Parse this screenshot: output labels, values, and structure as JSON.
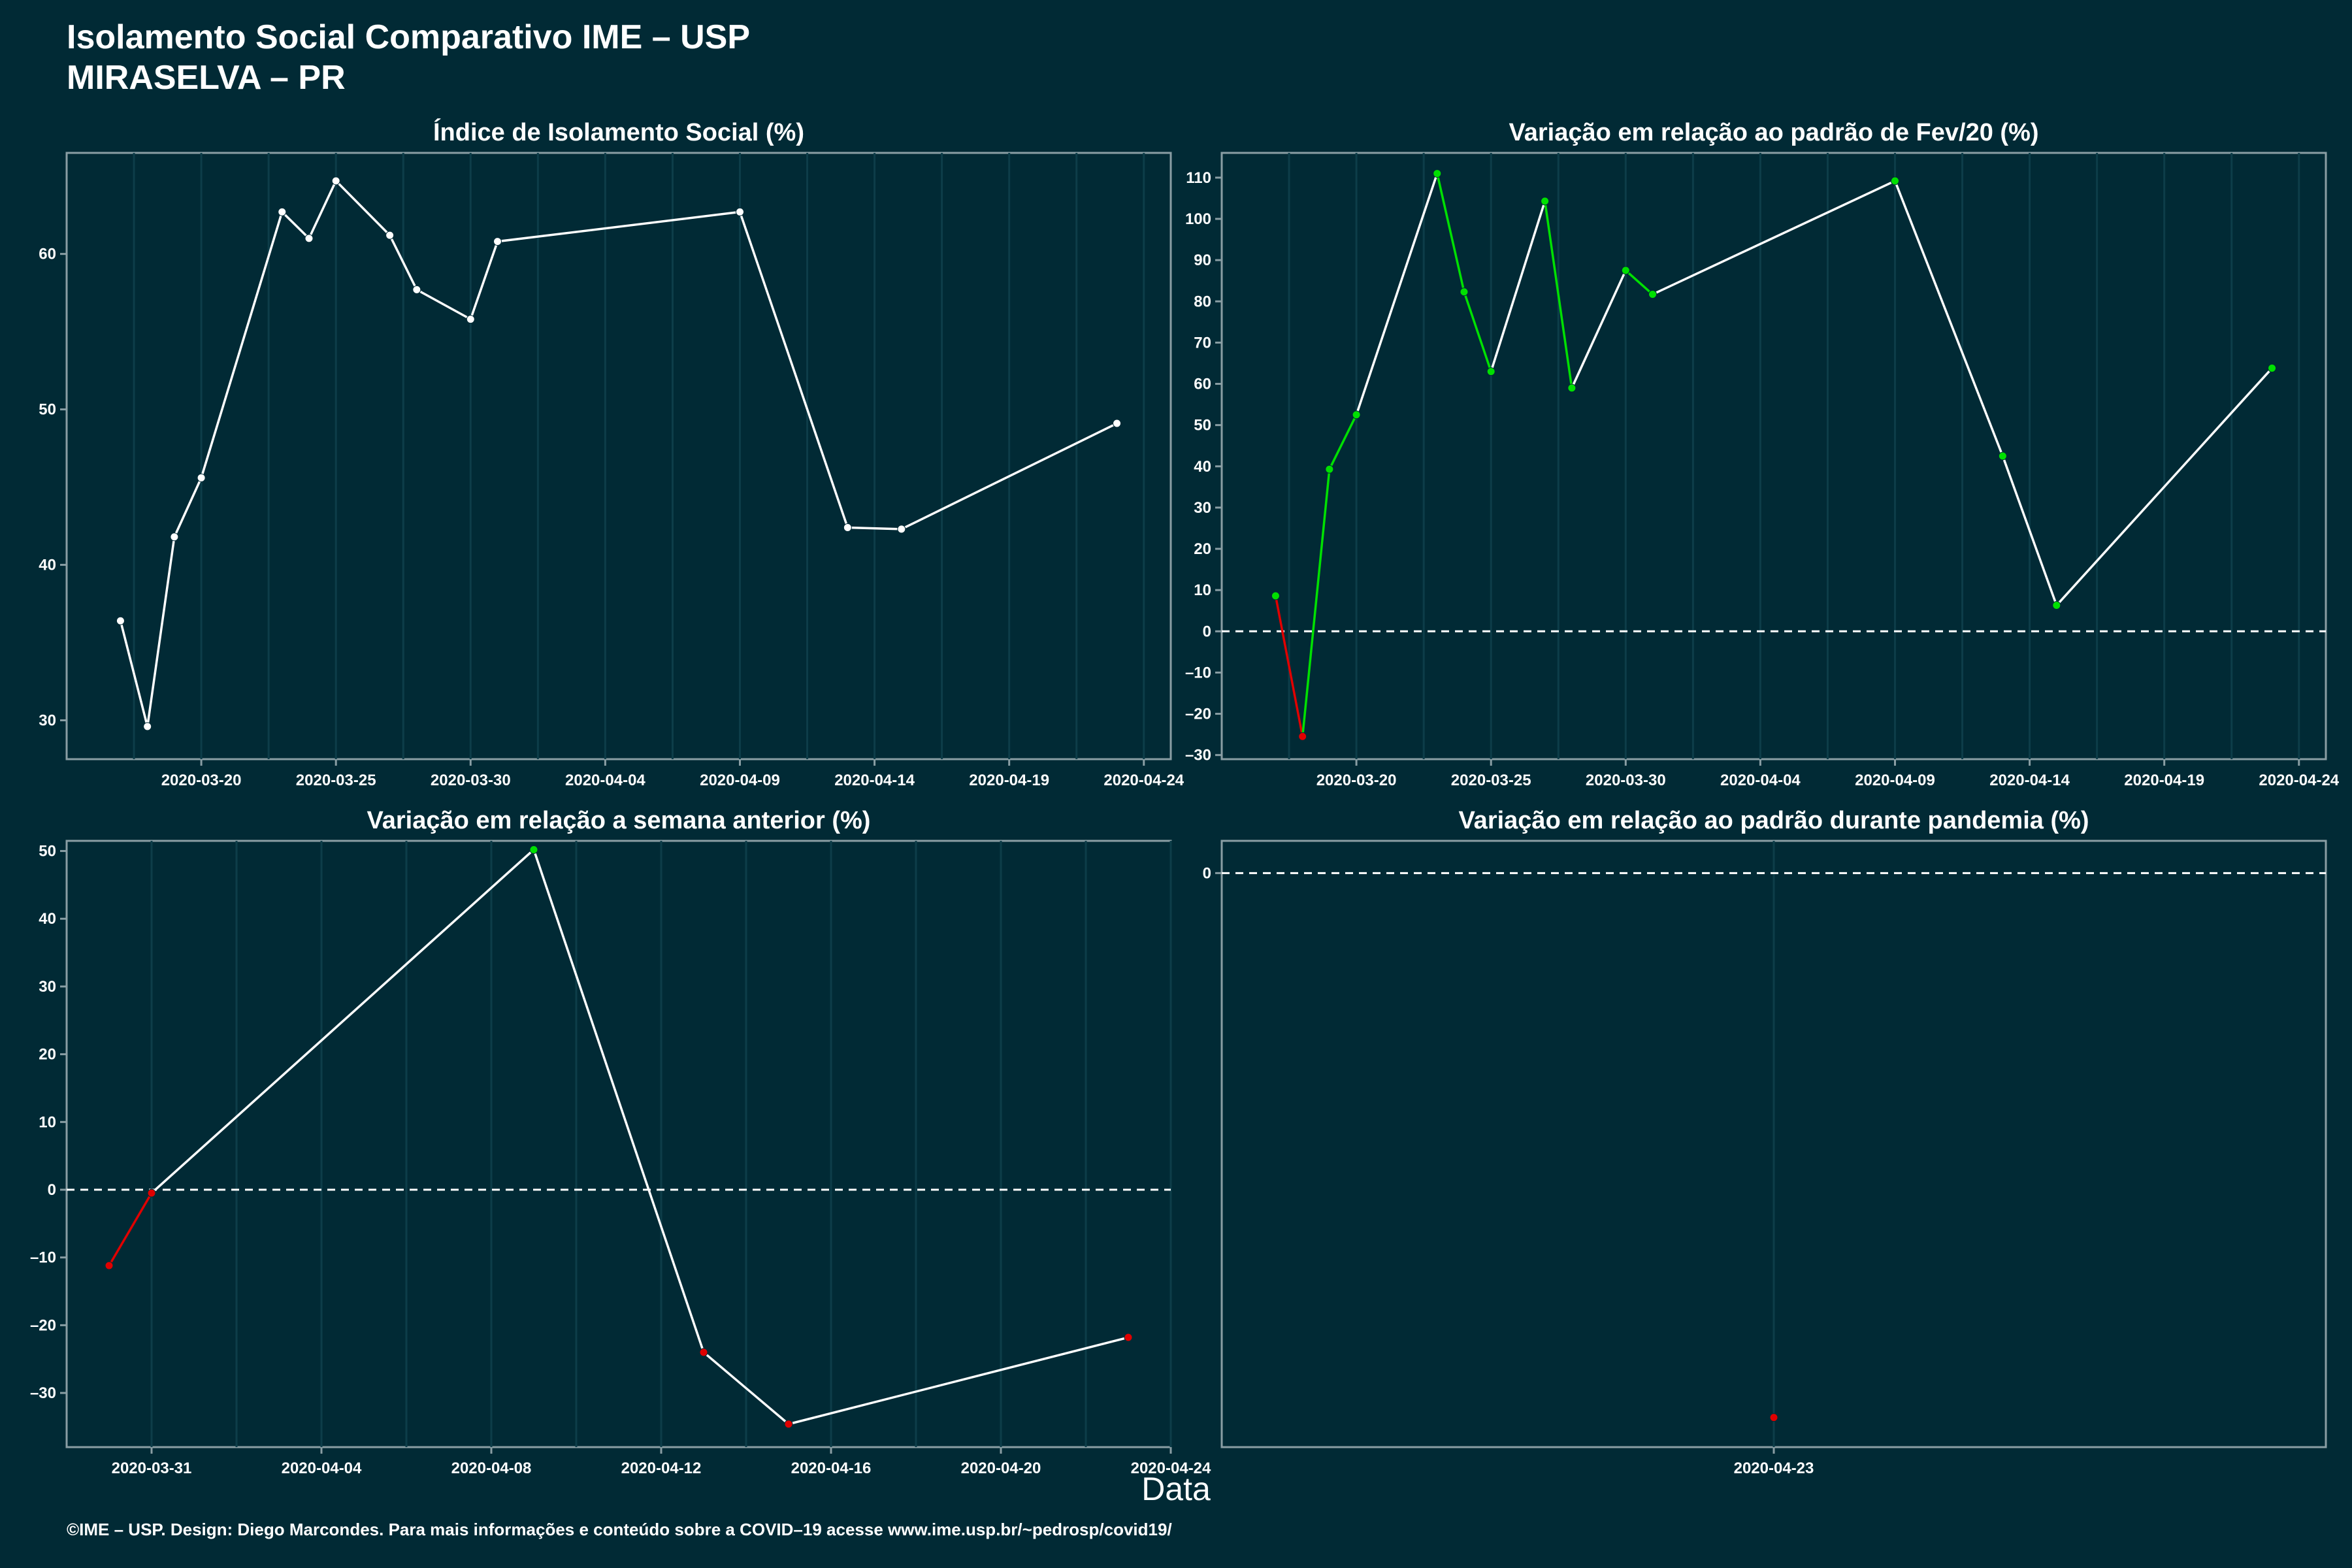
{
  "header": {
    "line1": "Isolamento Social Comparativo IME – USP",
    "line2": "MIRASELVA – PR"
  },
  "footer": "©IME – USP. Design: Diego Marcondes. Para mais informações e conteúdo sobre a COVID–19 acesse www.ime.usp.br/~pedrosp/covid19/",
  "global_xlabel": "Data",
  "colors": {
    "background": "#012a35",
    "line": "#ffffff",
    "positive": "#00e000",
    "negative": "#e00000"
  },
  "chart_data": [
    {
      "type": "line",
      "title": "Índice de Isolamento Social (%)",
      "xlim": [
        "2020-03-15",
        "2020-04-25"
      ],
      "ylim": [
        27.5,
        66.5
      ],
      "yticks": [
        30,
        40,
        50,
        60
      ],
      "xticks": [
        "2020-03-20",
        "2020-03-25",
        "2020-03-30",
        "2020-04-04",
        "2020-04-09",
        "2020-04-14",
        "2020-04-19",
        "2020-04-24"
      ],
      "zero_line": false,
      "color_mode": "none",
      "x": [
        "2020-03-17",
        "2020-03-18",
        "2020-03-19",
        "2020-03-20",
        "2020-03-23",
        "2020-03-24",
        "2020-03-25",
        "2020-03-27",
        "2020-03-28",
        "2020-03-30",
        "2020-03-31",
        "2020-04-09",
        "2020-04-13",
        "2020-04-15",
        "2020-04-23"
      ],
      "y": [
        36.4,
        29.6,
        41.8,
        45.6,
        62.7,
        61.0,
        64.7,
        61.2,
        57.7,
        55.8,
        60.8,
        62.7,
        42.4,
        42.3,
        49.1
      ]
    },
    {
      "type": "line",
      "title": "Variação em relação ao padrão de Fev/20 (%)",
      "xlim": [
        "2020-03-15",
        "2020-04-25"
      ],
      "ylim": [
        -31,
        116
      ],
      "yticks": [
        -30,
        -20,
        -10,
        0,
        10,
        20,
        30,
        40,
        50,
        60,
        70,
        80,
        90,
        100,
        110
      ],
      "xticks": [
        "2020-03-20",
        "2020-03-25",
        "2020-03-30",
        "2020-04-04",
        "2020-04-09",
        "2020-04-14",
        "2020-04-19",
        "2020-04-24"
      ],
      "zero_line": true,
      "color_mode": "trend",
      "x": [
        "2020-03-17",
        "2020-03-18",
        "2020-03-19",
        "2020-03-20",
        "2020-03-23",
        "2020-03-24",
        "2020-03-25",
        "2020-03-27",
        "2020-03-28",
        "2020-03-30",
        "2020-03-31",
        "2020-04-09",
        "2020-04-13",
        "2020-04-15",
        "2020-04-23"
      ],
      "y": [
        8.6,
        -25.5,
        39.3,
        52.5,
        111.0,
        82.3,
        63.0,
        104.3,
        59.0,
        87.5,
        81.7,
        109.2,
        42.5,
        6.3,
        63.8
      ]
    },
    {
      "type": "line",
      "title": "Variação em relação a semana anterior (%)",
      "xlim": [
        "2020-03-29",
        "2020-04-24"
      ],
      "ylim": [
        -38,
        51.5
      ],
      "yticks": [
        -30,
        -20,
        -10,
        0,
        10,
        20,
        30,
        40,
        50
      ],
      "xticks": [
        "2020-03-31",
        "2020-04-04",
        "2020-04-08",
        "2020-04-12",
        "2020-04-16",
        "2020-04-20",
        "2020-04-24"
      ],
      "zero_line": true,
      "color_mode": "trend",
      "x": [
        "2020-03-30",
        "2020-03-31",
        "2020-04-09",
        "2020-04-13",
        "2020-04-15",
        "2020-04-23"
      ],
      "y": [
        -11.2,
        -0.5,
        50.2,
        -24.0,
        -34.6,
        -21.8
      ]
    },
    {
      "type": "line",
      "title": "Variação em relação ao padrão durante pandemia (%)",
      "xlim": [
        "2020-04-13",
        "2020-05-03"
      ],
      "ylim": [
        -44.5,
        2.5
      ],
      "yticks": [
        0
      ],
      "xticks": [
        "2020-04-23"
      ],
      "zero_line": true,
      "color_mode": "trend",
      "x": [
        "2020-04-23"
      ],
      "y": [
        -42.2
      ]
    }
  ]
}
